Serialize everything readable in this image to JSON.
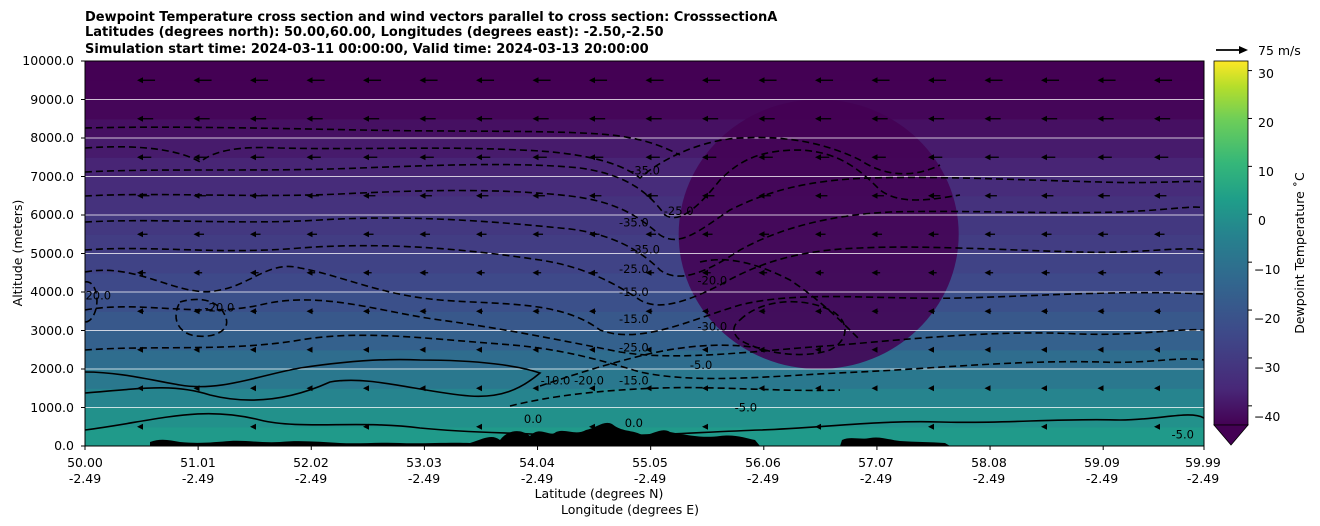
{
  "chart_data": {
    "type": "heatmap",
    "title_lines": [
      "Dewpoint Temperature cross section and wind vectors parallel to cross section: CrosssectionA",
      "Latitudes (degrees north): 50.00,60.00, Longitudes (degrees east): -2.50,-2.50",
      "Simulation start time: 2024-03-11 00:00:00, Valid time: 2024-03-13 20:00:00"
    ],
    "xlabel_lines": [
      "Latitude (degrees N)",
      "Longitude (degrees E)"
    ],
    "ylabel": "Altitude (meters)",
    "x_ticks": [
      {
        "lat": "50.00",
        "lon": "-2.49"
      },
      {
        "lat": "51.01",
        "lon": "-2.49"
      },
      {
        "lat": "52.02",
        "lon": "-2.49"
      },
      {
        "lat": "53.03",
        "lon": "-2.49"
      },
      {
        "lat": "54.04",
        "lon": "-2.49"
      },
      {
        "lat": "55.05",
        "lon": "-2.49"
      },
      {
        "lat": "56.06",
        "lon": "-2.49"
      },
      {
        "lat": "57.07",
        "lon": "-2.49"
      },
      {
        "lat": "58.08",
        "lon": "-2.49"
      },
      {
        "lat": "59.09",
        "lon": "-2.49"
      },
      {
        "lat": "59.99",
        "lon": "-2.49"
      }
    ],
    "xlim": [
      50.0,
      59.99
    ],
    "y_ticks": [
      "0.0",
      "1000.0",
      "2000.0",
      "3000.0",
      "4000.0",
      "5000.0",
      "6000.0",
      "7000.0",
      "8000.0",
      "9000.0",
      "10000.0"
    ],
    "ylim": [
      0,
      10000
    ],
    "grid": "horizontal lines only",
    "colormap": "viridis",
    "colorbar": {
      "label": "Dewpoint Temperature ˚C",
      "ticks": [
        "30",
        "20",
        "10",
        "0",
        "−10",
        "−20",
        "−30",
        "−40"
      ],
      "range": [
        -44,
        32
      ],
      "extend": "min"
    },
    "quiver_key": "75 m/s",
    "profile": {
      "altitudes": [
        0,
        500,
        1000,
        1500,
        2000,
        2500,
        3000,
        3500,
        4000,
        4500,
        5000,
        5500,
        6000,
        6500,
        7000,
        7500,
        8000,
        8500,
        9000,
        9500,
        10000
      ],
      "temperatures": [
        3,
        1,
        -2,
        -6,
        -10,
        -14,
        -18,
        -21,
        -24,
        -26,
        -28,
        -30,
        -32,
        -34,
        -36,
        -38,
        -40,
        -42,
        -44,
        -44,
        -44
      ]
    },
    "dry_region": {
      "lat": [
        55.3,
        57.8
      ],
      "alt": [
        2000,
        9000
      ],
      "min_temperature": -44
    },
    "contour_labels": [
      {
        "text": "-35.0",
        "lat": 55.0,
        "alt": 7050
      },
      {
        "text": "-35.0",
        "lat": 54.9,
        "alt": 5700
      },
      {
        "text": "-25.0",
        "lat": 55.3,
        "alt": 6000
      },
      {
        "text": "-35.0",
        "lat": 55.0,
        "alt": 5000
      },
      {
        "text": "-25.0",
        "lat": 54.9,
        "alt": 4500
      },
      {
        "text": "-15.0",
        "lat": 54.9,
        "alt": 3900
      },
      {
        "text": "-15.0",
        "lat": 54.9,
        "alt": 3200
      },
      {
        "text": "-25.0",
        "lat": 54.9,
        "alt": 2450
      },
      {
        "text": "-20.0",
        "lat": 55.6,
        "alt": 4200
      },
      {
        "text": "-30.0",
        "lat": 55.6,
        "alt": 3000
      },
      {
        "text": "-10.0",
        "lat": 54.2,
        "alt": 1600
      },
      {
        "text": "-20.0",
        "lat": 54.5,
        "alt": 1600
      },
      {
        "text": "-15.0",
        "lat": 54.9,
        "alt": 1600
      },
      {
        "text": "-5.0",
        "lat": 55.5,
        "alt": 2000
      },
      {
        "text": "-5.0",
        "lat": 55.9,
        "alt": 900
      },
      {
        "text": "0.0",
        "lat": 54.0,
        "alt": 600
      },
      {
        "text": "0.0",
        "lat": 54.9,
        "alt": 500
      },
      {
        "text": "-20.0",
        "lat": 51.2,
        "alt": 3500
      },
      {
        "text": "-20.0",
        "lat": 50.1,
        "alt": 3800
      },
      {
        "text": "-5.0",
        "lat": 59.8,
        "alt": 200
      }
    ]
  }
}
